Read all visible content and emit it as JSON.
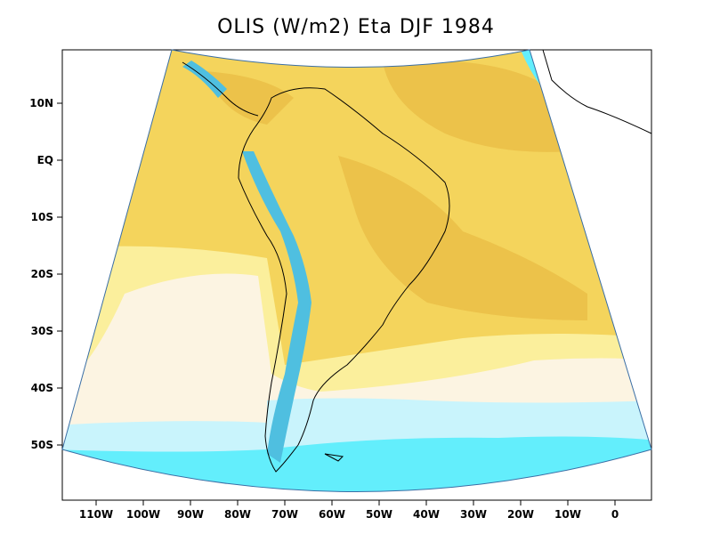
{
  "title": "OLIS (W/m2) Eta DJF 1984",
  "lat_labels": [
    "10N",
    "EQ",
    "10S",
    "20S",
    "30S",
    "40S",
    "50S"
  ],
  "lon_labels": [
    "110W",
    "100W",
    "90W",
    "80W",
    "70W",
    "60W",
    "50W",
    "40W",
    "30W",
    "20W",
    "10W",
    "0"
  ],
  "colors": {
    "deep_orange": "#ECC24A",
    "orange": "#F4D45C",
    "light_yellow": "#FBEF9C",
    "cream": "#FCF4E2",
    "light_cyan": "#C9F4FC",
    "cyan": "#63EEFC",
    "blue": "#4FBFE0",
    "border": "#000000"
  }
}
